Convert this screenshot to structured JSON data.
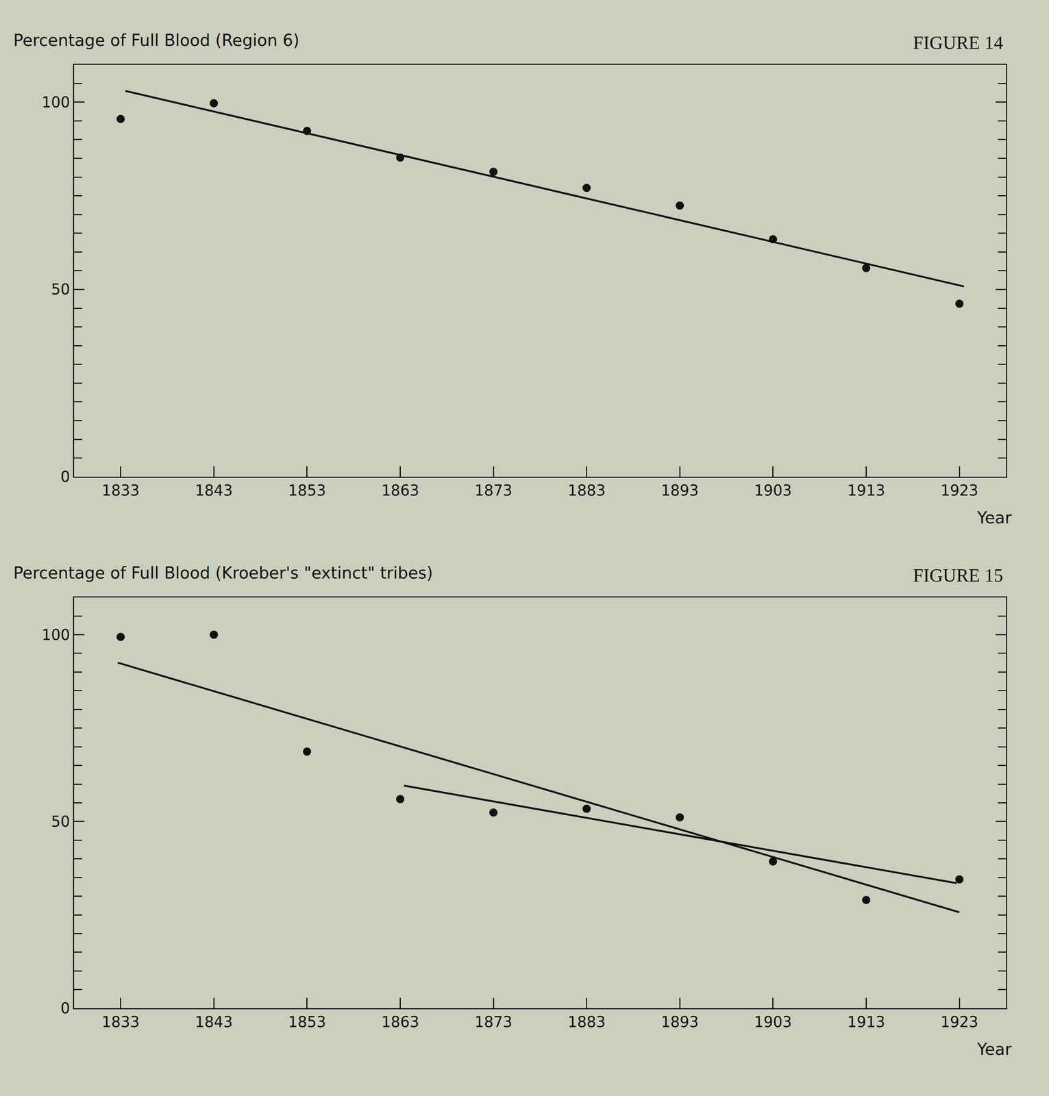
{
  "chart_data": [
    {
      "type": "scatter",
      "title": "Percentage of Full Blood (Region 6)",
      "annotations": [
        "FIGURE 14"
      ],
      "x_label": "Year",
      "xlim": [
        1828,
        1928
      ],
      "ylim": [
        0,
        110
      ],
      "xticks": [
        1833,
        1843,
        1853,
        1863,
        1873,
        1883,
        1893,
        1903,
        1913,
        1923
      ],
      "yticks": [
        0,
        50,
        100
      ],
      "grid": false,
      "series": [
        {
          "type": "scatter",
          "marker": "circle",
          "color": "#111111",
          "x": [
            1833,
            1843,
            1853,
            1863,
            1873,
            1883,
            1893,
            1903,
            1913,
            1923
          ],
          "values": [
            95.5,
            99.7,
            92.3,
            85.2,
            81.4,
            77.1,
            72.4,
            63.4,
            55.7,
            46.2
          ]
        },
        {
          "type": "line",
          "line_style": "solid",
          "color": "#111111",
          "x": [
            1833.5,
            1923.5
          ],
          "values": [
            103,
            50.8
          ]
        }
      ]
    },
    {
      "type": "scatter",
      "title": "Percentage of Full Blood (Kroeber's \"extinct\" tribes)",
      "annotations": [
        "FIGURE 15"
      ],
      "x_label": "Year",
      "xlim": [
        1828,
        1928
      ],
      "ylim": [
        0,
        110
      ],
      "xticks": [
        1833,
        1843,
        1853,
        1863,
        1873,
        1883,
        1893,
        1903,
        1913,
        1923
      ],
      "yticks": [
        0,
        50,
        100
      ],
      "grid": false,
      "series": [
        {
          "type": "scatter",
          "marker": "circle",
          "color": "#111111",
          "x": [
            1833,
            1843,
            1853,
            1863,
            1873,
            1883,
            1893,
            1903,
            1913,
            1923
          ],
          "values": [
            99.4,
            100,
            68.7,
            56.0,
            52.4,
            53.4,
            51.1,
            39.3,
            29.0,
            34.5
          ]
        },
        {
          "type": "line",
          "line_style": "solid",
          "color": "#111111",
          "x": [
            1832.7,
            1923
          ],
          "values": [
            92.5,
            25.7
          ]
        },
        {
          "type": "line",
          "line_style": "solid",
          "color": "#111111",
          "x": [
            1863.4,
            1922.7
          ],
          "values": [
            59.6,
            33.5
          ]
        }
      ]
    }
  ]
}
